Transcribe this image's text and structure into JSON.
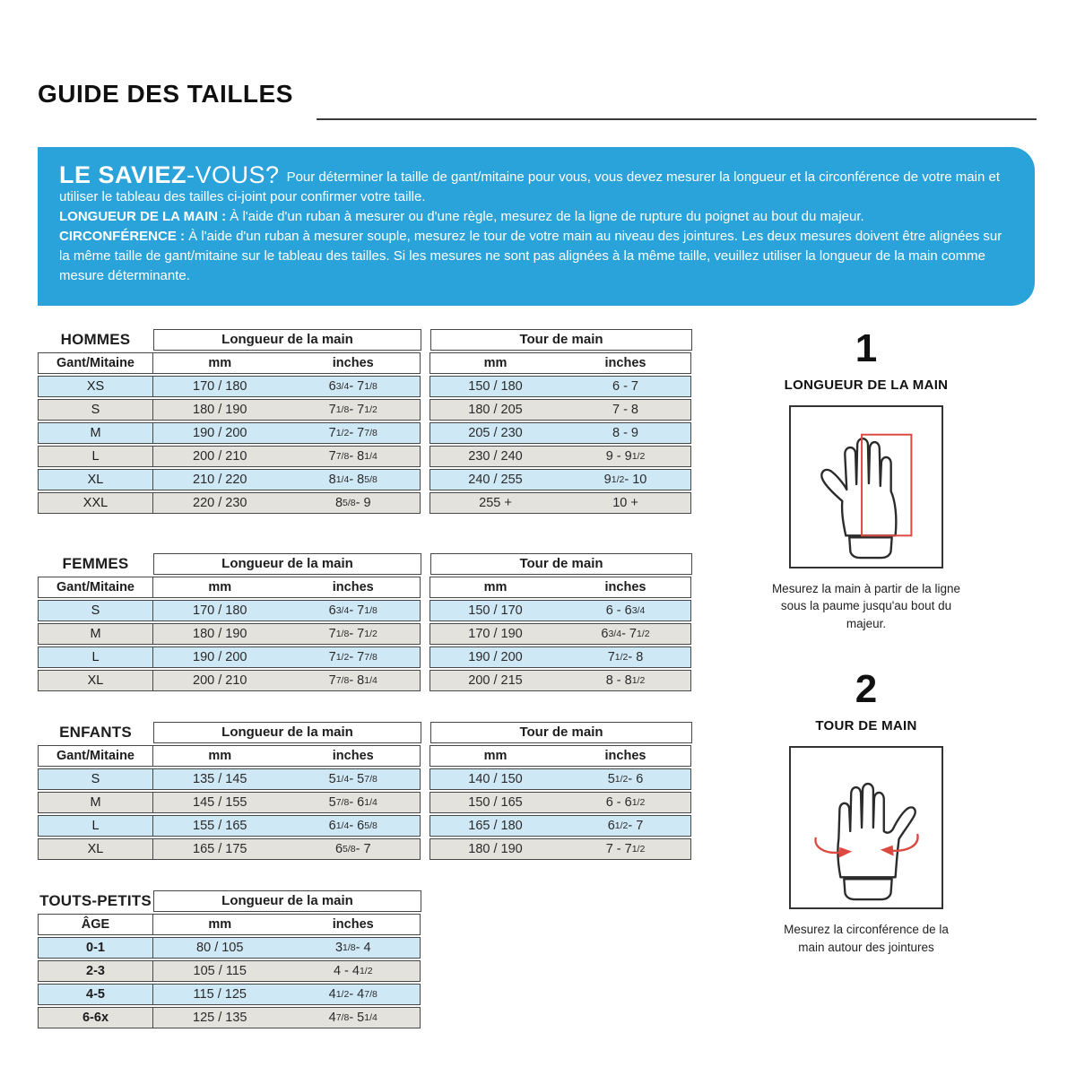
{
  "page": {
    "title": "GUIDE DES TAILLES"
  },
  "colors": {
    "header_blue": "#2AA2DA",
    "row_blue": "#CFE8F6",
    "row_gray": "#E3E2DD",
    "border": "#474747",
    "red_accent": "#DD4840"
  },
  "infobox": {
    "lead_bold": "LE SAVIEZ",
    "lead_light": "-VOUS?",
    "intro": "Pour déterminer la taille de gant/mitaine pour vous, vous devez mesurer la longueur et la circonférence de votre main et utiliser le tableau des tailles ci-joint pour confirmer votre taille.",
    "hand_length_label": "LONGUEUR DE LA MAIN :",
    "hand_length_text": "À l'aide d'un ruban à mesurer ou d'une règle, mesurez de la ligne de rupture du poignet au bout du majeur.",
    "circumference_label": "CIRCONFÉRENCE :",
    "circumference_text": "À l'aide d'un ruban à mesurer souple, mesurez le tour de votre main au niveau des jointures. Les deux mesures doivent être alignées sur la même taille de gant/mitaine sur le tableau des tailles. Si les mesures ne sont pas alignées à la même taille, veuillez utiliser la longueur de la main comme mesure déterminante."
  },
  "tables": [
    {
      "name": "hommes",
      "label": "HOMMES",
      "row_header": "Gant/Mitaine",
      "bold_sizes": false,
      "groups": [
        {
          "title": "Longueur de la main",
          "cols": [
            "mm",
            "inches"
          ],
          "types": [
            "mm",
            "in"
          ]
        },
        {
          "title": "Tour de main",
          "cols": [
            "mm",
            "inches"
          ],
          "types": [
            "mm",
            "in"
          ]
        }
      ],
      "rows": [
        [
          "XS",
          "170 / 180",
          "6 3/4 - 7 1/8",
          "150 / 180",
          "6 - 7"
        ],
        [
          "S",
          "180 / 190",
          "7 1/8 - 7 1/2",
          "180 / 205",
          "7 - 8"
        ],
        [
          "M",
          "190 / 200",
          "7 1/2 - 7 7/8",
          "205 / 230",
          "8 - 9"
        ],
        [
          "L",
          "200 / 210",
          "7 7/8 - 8 1/4",
          "230 / 240",
          "9 - 9 1/2"
        ],
        [
          "XL",
          "210 / 220",
          "8 1/4 - 8 5/8",
          "240 / 255",
          "9 1/2 - 10"
        ],
        [
          "XXL",
          "220 / 230",
          "8 5/8 - 9",
          "255 +",
          "10 +"
        ]
      ]
    },
    {
      "name": "femmes",
      "label": "FEMMES",
      "row_header": "Gant/Mitaine",
      "bold_sizes": false,
      "groups": [
        {
          "title": "Longueur de la main",
          "cols": [
            "mm",
            "inches"
          ],
          "types": [
            "mm",
            "in"
          ]
        },
        {
          "title": "Tour de main",
          "cols": [
            "mm",
            "inches"
          ],
          "types": [
            "mm",
            "in"
          ]
        }
      ],
      "rows": [
        [
          "S",
          "170 / 180",
          "6 3/4 - 7 1/8",
          "150 / 170",
          "6 - 6 3/4"
        ],
        [
          "M",
          "180 / 190",
          "7 1/8 - 7 1/2",
          "170 / 190",
          "6 3/4 - 7 1/2"
        ],
        [
          "L",
          "190 / 200",
          "7 1/2 - 7 7/8",
          "190 / 200",
          "7 1/2 - 8"
        ],
        [
          "XL",
          "200 / 210",
          "7 7/8 - 8 1/4",
          "200 / 215",
          "8 - 8 1/2"
        ]
      ]
    },
    {
      "name": "enfants",
      "label": "ENFANTS",
      "row_header": "Gant/Mitaine",
      "bold_sizes": false,
      "groups": [
        {
          "title": "Longueur de la main",
          "cols": [
            "mm",
            "inches"
          ],
          "types": [
            "mm",
            "in"
          ]
        },
        {
          "title": "Tour de main",
          "cols": [
            "mm",
            "inches"
          ],
          "types": [
            "mm",
            "in"
          ]
        }
      ],
      "rows": [
        [
          "S",
          "135 / 145",
          "5 1/4 - 5 7/8",
          "140 / 150",
          "5 1/2 - 6"
        ],
        [
          "M",
          "145 / 155",
          "5 7/8 - 6 1/4",
          "150 / 165",
          "6 - 6 1/2"
        ],
        [
          "L",
          "155 / 165",
          "6 1/4 - 6 5/8",
          "165 / 180",
          "6 1/2 - 7"
        ],
        [
          "XL",
          "165 / 175",
          "6 5/8 - 7",
          "180 / 190",
          "7 - 7 1/2"
        ]
      ]
    },
    {
      "name": "touts-petits",
      "label": "TOUTS-PETITS",
      "row_header": "ÂGE",
      "bold_sizes": true,
      "groups": [
        {
          "title": "Longueur de la main",
          "cols": [
            "mm",
            "inches"
          ],
          "types": [
            "mm",
            "in"
          ]
        }
      ],
      "rows": [
        [
          "0-1",
          "80 / 105",
          "3 1/8 - 4"
        ],
        [
          "2-3",
          "105 / 115",
          "4 - 4 1/2"
        ],
        [
          "4-5",
          "115 / 125",
          "4 1/2 - 4 7/8"
        ],
        [
          "6-6x",
          "125 / 135",
          "4 7/8 - 5 1/4"
        ]
      ]
    }
  ],
  "guides": [
    {
      "number": "1",
      "title": "LONGUEUR DE LA MAIN",
      "caption": "Mesurez la main à partir de la ligne sous la paume jusqu'au bout du majeur."
    },
    {
      "number": "2",
      "title": "TOUR DE MAIN",
      "caption": "Mesurez la circonférence de la main autour des jointures"
    }
  ]
}
